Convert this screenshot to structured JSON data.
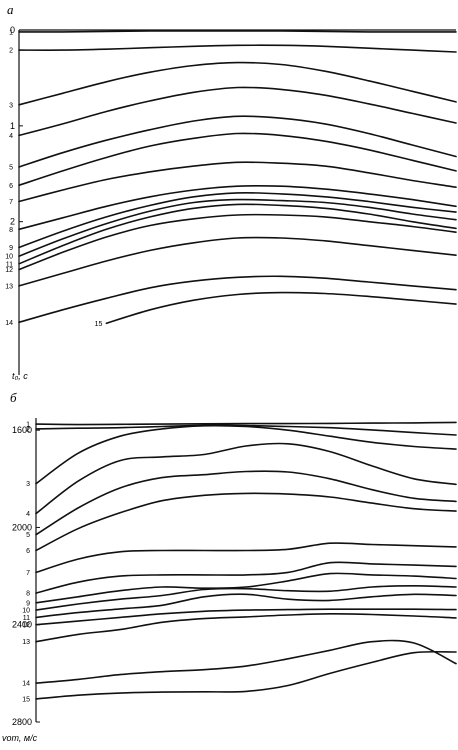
{
  "chart_data": [
    {
      "type": "line",
      "panel_label": "а",
      "ylabel": "t₀, с",
      "ylim": [
        0,
        3.6
      ],
      "yticks": [
        0,
        1,
        2
      ],
      "xlim": [
        0,
        100
      ],
      "x": [
        0,
        10,
        20,
        30,
        40,
        50,
        60,
        70,
        80,
        90,
        100
      ],
      "series": [
        {
          "name": "1",
          "values": [
            0.02,
            0.02,
            0.015,
            0.01,
            0.01,
            0.01,
            0.01,
            0.015,
            0.02,
            0.02,
            0.02
          ]
        },
        {
          "name": "2",
          "values": [
            0.21,
            0.21,
            0.2,
            0.185,
            0.17,
            0.16,
            0.16,
            0.17,
            0.19,
            0.21,
            0.23
          ]
        },
        {
          "name": "3",
          "values": [
            0.78,
            0.66,
            0.54,
            0.44,
            0.37,
            0.34,
            0.36,
            0.43,
            0.53,
            0.64,
            0.75
          ]
        },
        {
          "name": "4",
          "values": [
            1.1,
            0.98,
            0.85,
            0.74,
            0.65,
            0.6,
            0.62,
            0.68,
            0.77,
            0.87,
            0.97
          ]
        },
        {
          "name": "5",
          "values": [
            1.43,
            1.28,
            1.15,
            1.04,
            0.95,
            0.9,
            0.92,
            0.98,
            1.08,
            1.2,
            1.32
          ]
        },
        {
          "name": "6",
          "values": [
            1.62,
            1.47,
            1.33,
            1.21,
            1.13,
            1.08,
            1.1,
            1.16,
            1.25,
            1.36,
            1.47
          ]
        },
        {
          "name": "7",
          "values": [
            1.79,
            1.67,
            1.56,
            1.48,
            1.42,
            1.38,
            1.39,
            1.42,
            1.49,
            1.57,
            1.64
          ]
        },
        {
          "name": "8",
          "values": [
            2.08,
            1.96,
            1.84,
            1.74,
            1.67,
            1.63,
            1.63,
            1.66,
            1.71,
            1.77,
            1.84
          ]
        },
        {
          "name": "9",
          "values": [
            2.27,
            2.1,
            1.95,
            1.83,
            1.74,
            1.7,
            1.71,
            1.74,
            1.79,
            1.85,
            1.9
          ]
        },
        {
          "name": "10",
          "values": [
            2.36,
            2.18,
            2.02,
            1.89,
            1.8,
            1.77,
            1.78,
            1.8,
            1.85,
            1.92,
            1.98
          ]
        },
        {
          "name": "11",
          "values": [
            2.44,
            2.25,
            2.08,
            1.95,
            1.86,
            1.82,
            1.83,
            1.86,
            1.92,
            2.0,
            2.07
          ]
        },
        {
          "name": "12",
          "values": [
            2.5,
            2.32,
            2.16,
            2.04,
            1.97,
            1.93,
            1.93,
            1.95,
            2.0,
            2.05,
            2.11
          ]
        },
        {
          "name": "13",
          "values": [
            2.67,
            2.54,
            2.41,
            2.3,
            2.22,
            2.17,
            2.17,
            2.2,
            2.25,
            2.3,
            2.35
          ]
        },
        {
          "name": "14",
          "values": [
            3.05,
            2.92,
            2.8,
            2.69,
            2.62,
            2.58,
            2.57,
            2.59,
            2.63,
            2.67,
            2.71
          ]
        },
        {
          "name": "15",
          "values": [
            null,
            null,
            3.06,
            2.92,
            2.82,
            2.76,
            2.74,
            2.75,
            2.78,
            2.82,
            2.86
          ]
        }
      ]
    },
    {
      "type": "line",
      "panel_label": "б",
      "ylabel": "vот, м/с",
      "ylim": [
        1550,
        2800
      ],
      "yticks": [
        1600,
        2000,
        2400,
        2800
      ],
      "xlim": [
        0,
        100
      ],
      "x": [
        0,
        10,
        20,
        30,
        40,
        50,
        60,
        70,
        80,
        90,
        100
      ],
      "series": [
        {
          "name": "1",
          "values": [
            1575,
            1577,
            1576,
            1575,
            1574,
            1573,
            1573,
            1572,
            1571,
            1570,
            1568
          ]
        },
        {
          "name": "2",
          "values": [
            1595,
            1592,
            1590,
            1585,
            1580,
            1581,
            1585,
            1590,
            1599,
            1610,
            1620
          ]
        },
        {
          "name": "3",
          "values": [
            1820,
            1695,
            1625,
            1595,
            1582,
            1585,
            1600,
            1625,
            1650,
            1667,
            1678
          ]
        },
        {
          "name": "4",
          "values": [
            1943,
            1810,
            1725,
            1710,
            1700,
            1665,
            1656,
            1688,
            1747,
            1800,
            1823
          ]
        },
        {
          "name": "5",
          "values": [
            2030,
            1920,
            1838,
            1795,
            1783,
            1770,
            1772,
            1800,
            1845,
            1880,
            1893
          ]
        },
        {
          "name": "6",
          "values": [
            2095,
            2005,
            1940,
            1890,
            1868,
            1860,
            1863,
            1875,
            1900,
            1923,
            1933
          ]
        },
        {
          "name": "7",
          "values": [
            2185,
            2130,
            2100,
            2095,
            2095,
            2095,
            2090,
            2065,
            2070,
            2075,
            2080
          ]
        },
        {
          "name": "8",
          "values": [
            2270,
            2225,
            2200,
            2195,
            2195,
            2195,
            2185,
            2145,
            2150,
            2155,
            2160
          ]
        },
        {
          "name": "9",
          "values": [
            2310,
            2285,
            2260,
            2245,
            2250,
            2245,
            2220,
            2190,
            2195,
            2200,
            2210
          ]
        },
        {
          "name": "10",
          "values": [
            2340,
            2315,
            2295,
            2280,
            2255,
            2252,
            2260,
            2262,
            2245,
            2240,
            2245
          ]
        },
        {
          "name": "11",
          "values": [
            2370,
            2350,
            2335,
            2320,
            2285,
            2275,
            2295,
            2300,
            2285,
            2275,
            2280
          ]
        },
        {
          "name": "12",
          "values": [
            2400,
            2385,
            2370,
            2355,
            2345,
            2340,
            2338,
            2336,
            2336,
            2336,
            2338
          ]
        },
        {
          "name": "13",
          "values": [
            2470,
            2440,
            2420,
            2390,
            2375,
            2368,
            2360,
            2355,
            2358,
            2364,
            2372
          ]
        },
        {
          "name": "14",
          "values": [
            2640,
            2625,
            2605,
            2593,
            2585,
            2570,
            2540,
            2505,
            2470,
            2475,
            2560
          ]
        },
        {
          "name": "15",
          "values": [
            2705,
            2690,
            2681,
            2677,
            2676,
            2674,
            2650,
            2600,
            2555,
            2515,
            2512
          ]
        }
      ]
    }
  ]
}
